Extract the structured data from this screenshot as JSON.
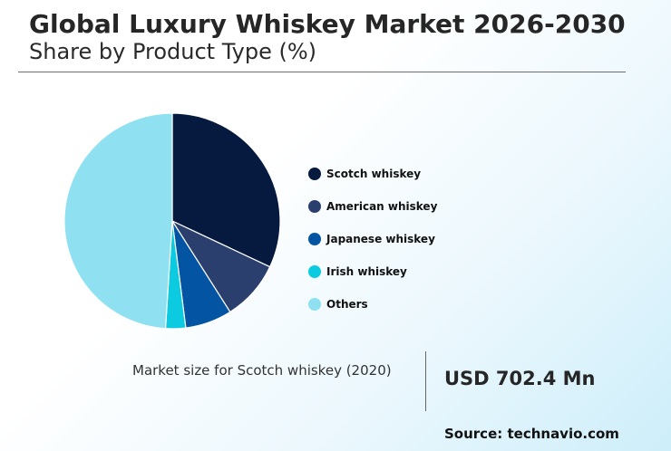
{
  "header": {
    "title": "Global Luxury Whiskey Market 2026-2030",
    "subtitle": "Share by Product Type (%)"
  },
  "chart_data": {
    "type": "pie",
    "slices": [
      {
        "label": "Scotch whiskey",
        "value": 32,
        "color": "#061a40"
      },
      {
        "label": "American whiskey",
        "value": 9,
        "color": "#2b3f6e"
      },
      {
        "label": "Japanese whiskey",
        "value": 7,
        "color": "#0354a3"
      },
      {
        "label": "Irish whiskey",
        "value": 3,
        "color": "#0ccbe1"
      },
      {
        "label": "Others",
        "value": 49,
        "color": "#8fe1f2"
      }
    ],
    "legend_position": "right"
  },
  "metric": {
    "label": "Market size for Scotch whiskey (2020)",
    "value": "USD 702.4 Mn"
  },
  "footer": {
    "source": "Source: technavio.com"
  }
}
